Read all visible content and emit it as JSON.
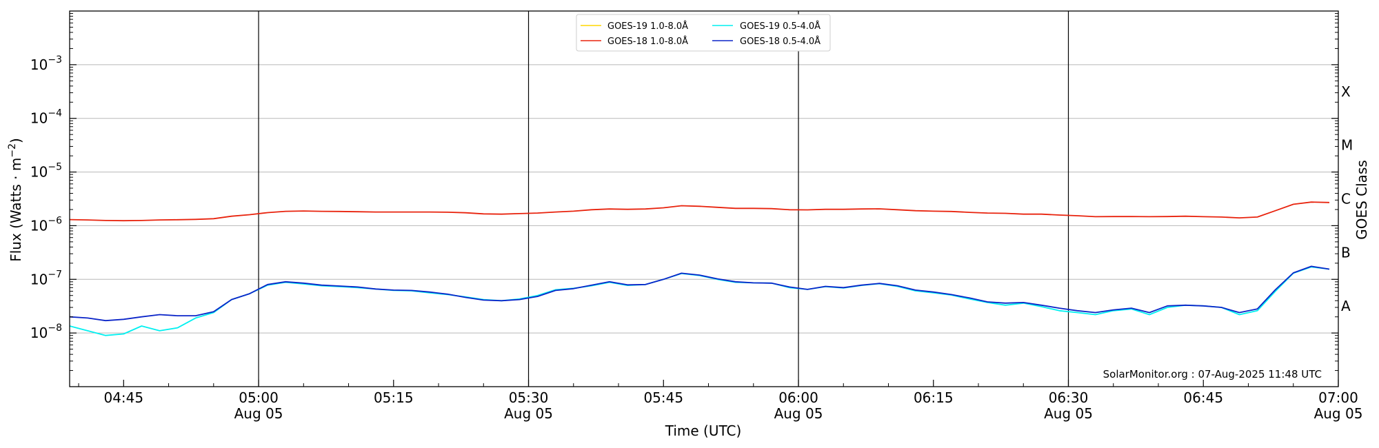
{
  "chart_data": {
    "type": "line",
    "ylabel_main": "Flux (Watts · m",
    "ylabel_exp": "−2",
    "ylabel_close": ")",
    "xlabel": "Time (UTC)",
    "right_label": "GOES Class",
    "credit": "SolarMonitor.org : 07-Aug-2025 11:48 UTC",
    "y_scale": "log",
    "ylim": [
      1e-09,
      0.01
    ],
    "x_range": [
      "04:39",
      "07:00"
    ],
    "y_ticks": [
      {
        "value": 0.001,
        "base": "10",
        "exp": "−3"
      },
      {
        "value": 0.0001,
        "base": "10",
        "exp": "−4"
      },
      {
        "value": 1e-05,
        "base": "10",
        "exp": "−5"
      },
      {
        "value": 1e-06,
        "base": "10",
        "exp": "−6"
      },
      {
        "value": 1e-07,
        "base": "10",
        "exp": "−7"
      },
      {
        "value": 1e-08,
        "base": "10",
        "exp": "−8"
      }
    ],
    "x_ticks": [
      {
        "time": "04:45",
        "label": "04:45",
        "date": ""
      },
      {
        "time": "05:00",
        "label": "05:00",
        "date": "Aug 05"
      },
      {
        "time": "05:15",
        "label": "05:15",
        "date": ""
      },
      {
        "time": "05:30",
        "label": "05:30",
        "date": "Aug 05"
      },
      {
        "time": "05:45",
        "label": "05:45",
        "date": ""
      },
      {
        "time": "06:00",
        "label": "06:00",
        "date": "Aug 05"
      },
      {
        "time": "06:15",
        "label": "06:15",
        "date": ""
      },
      {
        "time": "06:30",
        "label": "06:30",
        "date": "Aug 05"
      },
      {
        "time": "06:45",
        "label": "06:45",
        "date": ""
      },
      {
        "time": "07:00",
        "label": "07:00",
        "date": "Aug 05"
      }
    ],
    "vertical_lines": [
      "05:00",
      "05:30",
      "06:00",
      "06:30"
    ],
    "goes_classes": [
      {
        "label": "X",
        "value": 0.000316
      },
      {
        "label": "M",
        "value": 3.16e-05
      },
      {
        "label": "C",
        "value": 3.16e-06
      },
      {
        "label": "B",
        "value": 3.16e-07
      },
      {
        "label": "A",
        "value": 3.16e-08
      }
    ],
    "grid": "horizontal at decades",
    "legend_position": "top-center",
    "series": [
      {
        "name": "GOES-19 1.0-8.0Å",
        "color": "#ffd700",
        "time": [],
        "values": []
      },
      {
        "name": "GOES-18 1.0-8.0Å",
        "color": "#e8220c",
        "time": [
          "04:39",
          "04:41",
          "04:43",
          "04:45",
          "04:47",
          "04:49",
          "04:51",
          "04:53",
          "04:55",
          "04:57",
          "04:59",
          "05:01",
          "05:03",
          "05:05",
          "05:07",
          "05:09",
          "05:11",
          "05:13",
          "05:15",
          "05:17",
          "05:19",
          "05:21",
          "05:23",
          "05:25",
          "05:27",
          "05:29",
          "05:31",
          "05:33",
          "05:35",
          "05:37",
          "05:39",
          "05:41",
          "05:43",
          "05:45",
          "05:47",
          "05:49",
          "05:51",
          "05:53",
          "05:55",
          "05:57",
          "05:59",
          "06:01",
          "06:03",
          "06:05",
          "06:07",
          "06:09",
          "06:11",
          "06:13",
          "06:15",
          "06:17",
          "06:19",
          "06:21",
          "06:23",
          "06:25",
          "06:27",
          "06:29",
          "06:31",
          "06:33",
          "06:35",
          "06:37",
          "06:39",
          "06:41",
          "06:43",
          "06:45",
          "06:47",
          "06:49",
          "06:51",
          "06:53",
          "06:55",
          "06:57",
          "06:59"
        ],
        "values": [
          1.3e-06,
          1.28e-06,
          1.25e-06,
          1.24e-06,
          1.25e-06,
          1.28e-06,
          1.29e-06,
          1.31e-06,
          1.35e-06,
          1.5e-06,
          1.6e-06,
          1.75e-06,
          1.85e-06,
          1.88e-06,
          1.85e-06,
          1.84e-06,
          1.82e-06,
          1.8e-06,
          1.8e-06,
          1.8e-06,
          1.8e-06,
          1.78e-06,
          1.74e-06,
          1.66e-06,
          1.64e-06,
          1.68e-06,
          1.72e-06,
          1.8e-06,
          1.86e-06,
          1.98e-06,
          2.05e-06,
          2.02e-06,
          2.05e-06,
          2.15e-06,
          2.35e-06,
          2.3e-06,
          2.2e-06,
          2.1e-06,
          2.1e-06,
          2.08e-06,
          1.98e-06,
          1.97e-06,
          2.02e-06,
          2.02e-06,
          2.05e-06,
          2.06e-06,
          1.98e-06,
          1.9e-06,
          1.86e-06,
          1.84e-06,
          1.77e-06,
          1.72e-06,
          1.7e-06,
          1.64e-06,
          1.64e-06,
          1.58e-06,
          1.53e-06,
          1.47e-06,
          1.48e-06,
          1.48e-06,
          1.47e-06,
          1.48e-06,
          1.5e-06,
          1.47e-06,
          1.45e-06,
          1.4e-06,
          1.45e-06,
          1.9e-06,
          2.5e-06,
          2.75e-06,
          2.7e-06
        ]
      },
      {
        "name": "GOES-19 0.5-4.0Å",
        "color": "#00f0f0",
        "time": [
          "04:39",
          "04:41",
          "04:43",
          "04:45",
          "04:47",
          "04:49",
          "04:51",
          "04:53",
          "04:55",
          "04:57",
          "04:59",
          "05:01",
          "05:03",
          "05:05",
          "05:07",
          "05:09",
          "05:11",
          "05:13",
          "05:15",
          "05:17",
          "05:19",
          "05:21",
          "05:23",
          "05:25",
          "05:27",
          "05:29",
          "05:31",
          "05:33",
          "05:35",
          "05:37",
          "05:39",
          "05:41",
          "05:43",
          "05:45",
          "05:47",
          "05:49",
          "05:51",
          "05:53",
          "05:55",
          "05:57",
          "05:59",
          "06:01",
          "06:03",
          "06:05",
          "06:07",
          "06:09",
          "06:11",
          "06:13",
          "06:15",
          "06:17",
          "06:19",
          "06:21",
          "06:23",
          "06:25",
          "06:27",
          "06:29",
          "06:31",
          "06:33",
          "06:35",
          "06:37",
          "06:39",
          "06:41",
          "06:43",
          "06:45",
          "06:47",
          "06:49",
          "06:51",
          "06:53",
          "06:55",
          "06:57",
          "06:59"
        ],
        "values": [
          1.35e-08,
          1.1e-08,
          9e-09,
          9.6e-09,
          1.35e-08,
          1.1e-08,
          1.25e-08,
          1.9e-08,
          2.4e-08,
          4.2e-08,
          5.4e-08,
          7.8e-08,
          8.8e-08,
          8.2e-08,
          7.6e-08,
          7.3e-08,
          7e-08,
          6.6e-08,
          6.2e-08,
          6.1e-08,
          5.6e-08,
          5.2e-08,
          4.7e-08,
          4.2e-08,
          4e-08,
          4.3e-08,
          5e-08,
          6.4e-08,
          6.8e-08,
          7.6e-08,
          8.8e-08,
          7.7e-08,
          8e-08,
          1e-07,
          1.28e-07,
          1.18e-07,
          1e-07,
          8.8e-08,
          8.6e-08,
          8.5e-08,
          7e-08,
          6.5e-08,
          7.3e-08,
          6.9e-08,
          7.7e-08,
          8.3e-08,
          7.4e-08,
          6.1e-08,
          5.6e-08,
          5.1e-08,
          4.3e-08,
          3.7e-08,
          3.3e-08,
          3.6e-08,
          3.1e-08,
          2.6e-08,
          2.4e-08,
          2.2e-08,
          2.6e-08,
          2.8e-08,
          2.2e-08,
          3e-08,
          3.3e-08,
          3.2e-08,
          3e-08,
          2.2e-08,
          2.6e-08,
          6e-08,
          1.3e-07,
          1.7e-07,
          1.55e-07
        ]
      },
      {
        "name": "GOES-18 0.5-4.0Å",
        "color": "#0a24c8",
        "time": [
          "04:39",
          "04:41",
          "04:43",
          "04:45",
          "04:47",
          "04:49",
          "04:51",
          "04:53",
          "04:55",
          "04:57",
          "04:59",
          "05:01",
          "05:03",
          "05:05",
          "05:07",
          "05:09",
          "05:11",
          "05:13",
          "05:15",
          "05:17",
          "05:19",
          "05:21",
          "05:23",
          "05:25",
          "05:27",
          "05:29",
          "05:31",
          "05:33",
          "05:35",
          "05:37",
          "05:39",
          "05:41",
          "05:43",
          "05:45",
          "05:47",
          "05:49",
          "05:51",
          "05:53",
          "05:55",
          "05:57",
          "05:59",
          "06:01",
          "06:03",
          "06:05",
          "06:07",
          "06:09",
          "06:11",
          "06:13",
          "06:15",
          "06:17",
          "06:19",
          "06:21",
          "06:23",
          "06:25",
          "06:27",
          "06:29",
          "06:31",
          "06:33",
          "06:35",
          "06:37",
          "06:39",
          "06:41",
          "06:43",
          "06:45",
          "06:47",
          "06:49",
          "06:51",
          "06:53",
          "06:55",
          "06:57",
          "06:59"
        ],
        "values": [
          2e-08,
          1.9e-08,
          1.7e-08,
          1.8e-08,
          2e-08,
          2.2e-08,
          2.1e-08,
          2.1e-08,
          2.5e-08,
          4.2e-08,
          5.4e-08,
          8e-08,
          9e-08,
          8.5e-08,
          7.8e-08,
          7.5e-08,
          7.2e-08,
          6.6e-08,
          6.3e-08,
          6.2e-08,
          5.8e-08,
          5.3e-08,
          4.6e-08,
          4.1e-08,
          4e-08,
          4.2e-08,
          4.8e-08,
          6.2e-08,
          6.7e-08,
          7.8e-08,
          9e-08,
          7.9e-08,
          8e-08,
          1e-07,
          1.3e-07,
          1.2e-07,
          1.02e-07,
          9e-08,
          8.6e-08,
          8.5e-08,
          7.2e-08,
          6.5e-08,
          7.4e-08,
          7e-08,
          7.8e-08,
          8.4e-08,
          7.6e-08,
          6.3e-08,
          5.8e-08,
          5.2e-08,
          4.5e-08,
          3.8e-08,
          3.6e-08,
          3.7e-08,
          3.3e-08,
          2.9e-08,
          2.6e-08,
          2.4e-08,
          2.7e-08,
          2.9e-08,
          2.4e-08,
          3.2e-08,
          3.3e-08,
          3.2e-08,
          3e-08,
          2.4e-08,
          2.8e-08,
          6.4e-08,
          1.32e-07,
          1.75e-07,
          1.55e-07
        ]
      }
    ]
  }
}
